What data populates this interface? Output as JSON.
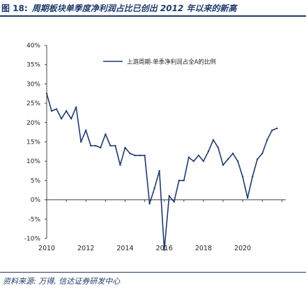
{
  "header": {
    "figure_number": "图 18:",
    "title": "周期板块单季度净利润占比已创出 2012 年以来的新高"
  },
  "footer": {
    "source": "资料来源: 万得, 信达证券研发中心"
  },
  "chart_data": {
    "type": "line",
    "title": "",
    "xlabel": "",
    "ylabel": "",
    "ylim": [
      -10,
      40
    ],
    "y_ticks": [
      40,
      35,
      30,
      25,
      20,
      15,
      10,
      5,
      0,
      -5,
      -10
    ],
    "y_tick_labels": [
      "40%",
      "35%",
      "30%",
      "25%",
      "20%",
      "15%",
      "10%",
      "5%",
      "0%",
      "-5%",
      "-10%"
    ],
    "x_ticks": [
      2010,
      2012,
      2014,
      2016,
      2018,
      2020
    ],
    "x_tick_labels": [
      "2010",
      "2012",
      "2014",
      "2016",
      "2018",
      "2020"
    ],
    "xlim": [
      2010,
      2022.2
    ],
    "legend_position": "top-right",
    "series": [
      {
        "name": "上游周期-单季净利润占全A的比例",
        "color": "#1f3a6b",
        "x": [
          2010.0,
          2010.25,
          2010.5,
          2010.75,
          2011.0,
          2011.25,
          2011.5,
          2011.75,
          2012.0,
          2012.25,
          2012.5,
          2012.75,
          2013.0,
          2013.25,
          2013.5,
          2013.75,
          2014.0,
          2014.25,
          2014.5,
          2014.75,
          2015.0,
          2015.25,
          2015.5,
          2015.75,
          2016.0,
          2016.25,
          2016.5,
          2016.75,
          2017.0,
          2017.25,
          2017.5,
          2017.75,
          2018.0,
          2018.25,
          2018.5,
          2018.75,
          2019.0,
          2019.25,
          2019.5,
          2019.75,
          2020.0,
          2020.25,
          2020.5,
          2020.75,
          2021.0,
          2021.25,
          2021.5,
          2021.75
        ],
        "y": [
          27.5,
          23.0,
          23.5,
          21.0,
          23.0,
          21.0,
          24.0,
          15.0,
          18.0,
          14.0,
          14.0,
          13.5,
          17.0,
          14.0,
          14.0,
          9.0,
          13.5,
          12.0,
          11.5,
          11.5,
          11.5,
          -1.0,
          3.0,
          7.5,
          -13.0,
          1.0,
          -0.5,
          5.0,
          5.0,
          11.0,
          10.0,
          11.5,
          10.0,
          12.5,
          15.5,
          13.5,
          9.0,
          10.5,
          12.0,
          10.0,
          6.0,
          0.5,
          6.0,
          10.5,
          12.0,
          15.5,
          18.0,
          18.5
        ]
      }
    ]
  }
}
